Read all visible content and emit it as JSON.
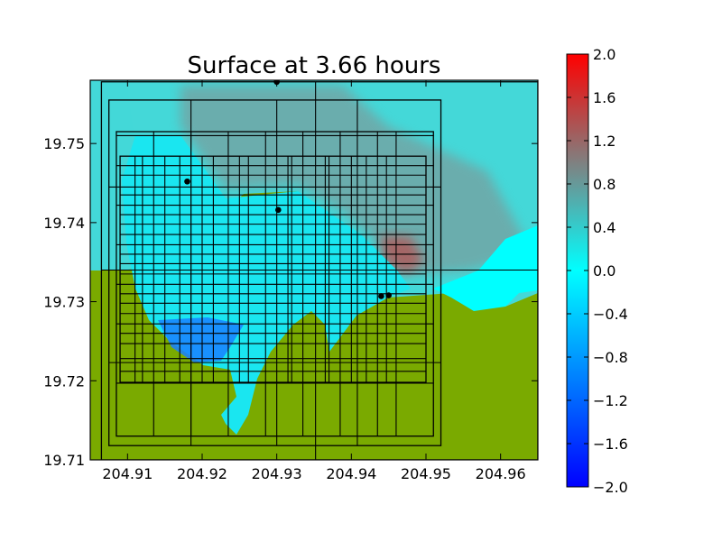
{
  "chart_data": {
    "type": "heatmap",
    "title": "Surface at 3.66 hours",
    "xlabel": "",
    "ylabel": "",
    "xlim": [
      204.905,
      204.965
    ],
    "ylim": [
      19.71,
      19.758
    ],
    "x_ticks": [
      "204.91",
      "204.92",
      "204.93",
      "204.94",
      "204.95",
      "204.96"
    ],
    "y_ticks": [
      "19.71",
      "19.72",
      "19.73",
      "19.74",
      "19.75"
    ],
    "colorbar": {
      "min": -2.0,
      "max": 2.0,
      "ticks": [
        "−2.0",
        "−1.6",
        "−1.2",
        "−0.8",
        "−0.4",
        "0.0",
        "0.4",
        "0.8",
        "1.2",
        "1.6",
        "2.0"
      ],
      "colors": {
        "low": "#0000ff",
        "mid_low": "#00ffff",
        "mid_high": "#808080",
        "high": "#ff0000"
      }
    },
    "colors": {
      "land": "#7aaa00",
      "water_shallow": "#44d8d8",
      "water_bay": "#1ae6f0",
      "water_deep_bay": "#1a80ff",
      "surge": "#8a8a8a",
      "surge_peak": "#b85050",
      "grid_lines": "#000000"
    },
    "gauges": [
      {
        "x": 204.93,
        "y": 19.7578
      },
      {
        "x": 204.918,
        "y": 19.7452
      },
      {
        "x": 204.9302,
        "y": 19.7416
      },
      {
        "x": 204.944,
        "y": 19.7307
      },
      {
        "x": 204.945,
        "y": 19.7308
      }
    ],
    "amr_patches": [
      {
        "x": [
          204.9065,
          204.965
        ],
        "y": [
          19.71,
          19.7578
        ]
      },
      {
        "x": [
          204.9075,
          204.952
        ],
        "y": [
          19.7118,
          19.7555
        ]
      },
      {
        "x": [
          204.9085,
          204.951
        ],
        "y": [
          19.713,
          19.7515
        ]
      },
      {
        "x": [
          204.909,
          204.95
        ],
        "y": [
          19.7198,
          19.7484
        ]
      }
    ],
    "amr_grid": {
      "coarse_x": [
        204.9352
      ],
      "coarse_y": [
        19.734
      ],
      "level2_x": [
        204.9185,
        204.93,
        204.9408
      ],
      "level2_y": [
        19.7223,
        19.7445
      ],
      "level3_x": [
        204.9135,
        204.9185,
        204.9235,
        204.9285,
        204.9335,
        204.9385,
        204.9435,
        204.946
      ],
      "level3_y": [
        19.7197,
        19.7272,
        19.7322,
        19.7372,
        19.7422,
        19.7472,
        19.751
      ],
      "level4_x": [
        204.911,
        204.912,
        204.915,
        204.917,
        204.92,
        204.9215,
        204.925,
        204.9262,
        204.9315,
        204.932,
        204.9365,
        204.937,
        204.94,
        204.942,
        204.9447
      ],
      "level4_y": [
        19.7212,
        19.7228,
        19.7247,
        19.726,
        19.7285,
        19.7298,
        19.731,
        19.7335,
        19.7348,
        19.736,
        19.7385,
        19.7398,
        19.741,
        19.7435,
        19.746
      ]
    }
  }
}
